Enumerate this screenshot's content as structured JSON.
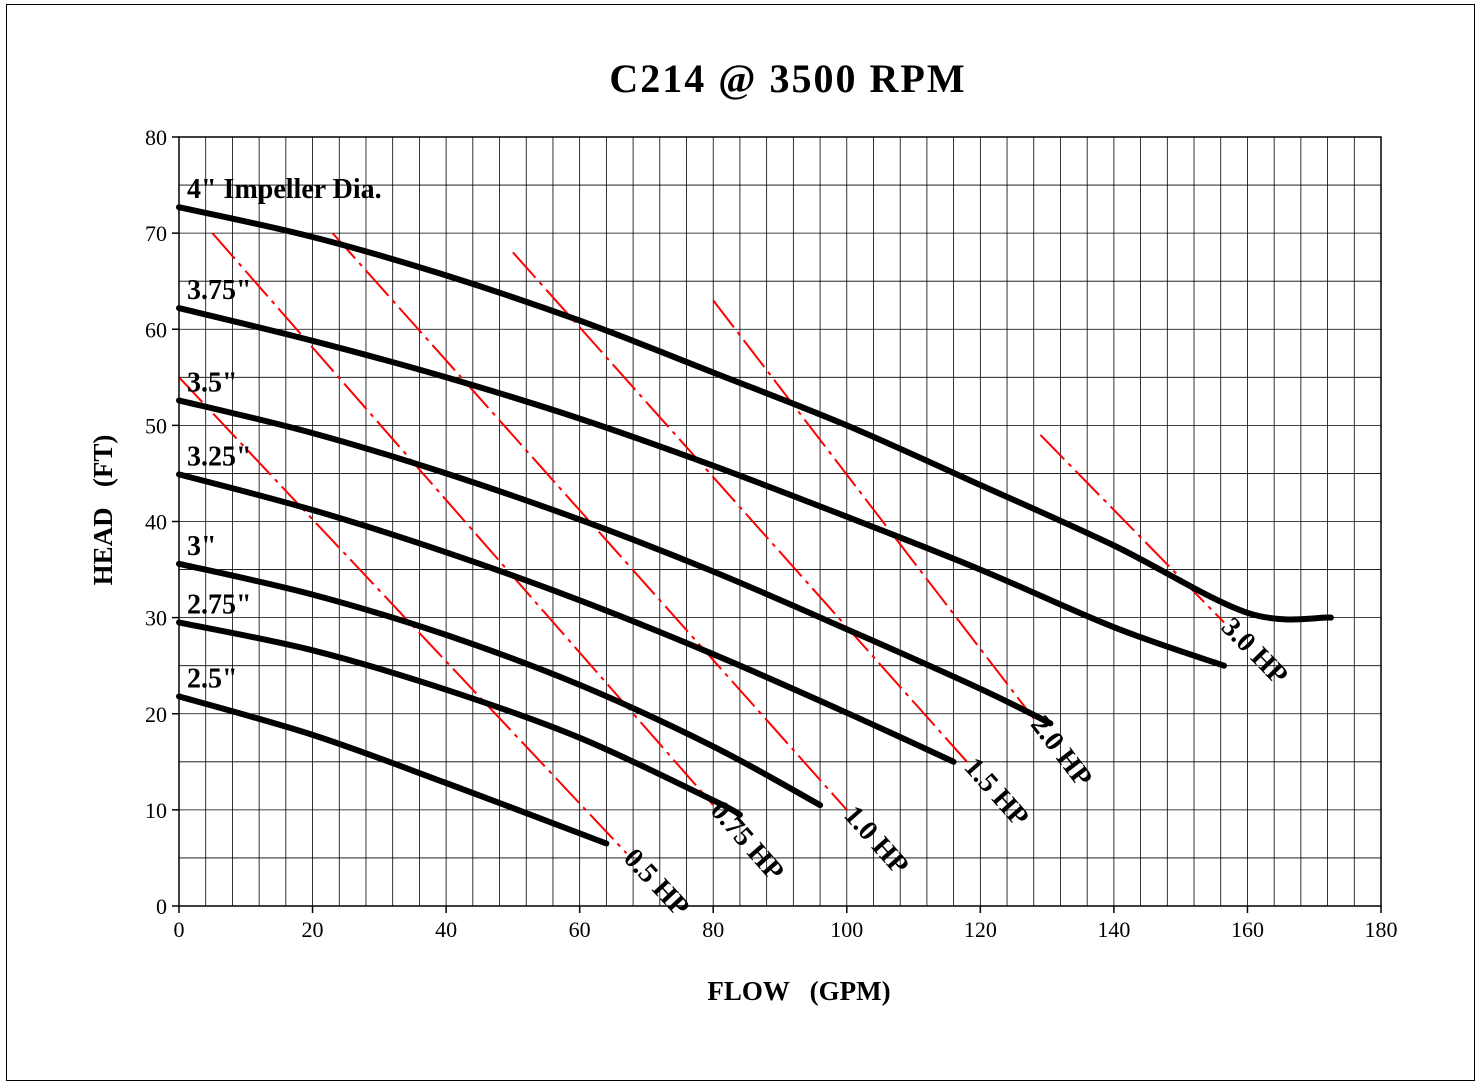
{
  "chart_data": {
    "type": "line",
    "title": "C214 @ 3500 RPM",
    "xlabel": "FLOW   (GPM)",
    "ylabel": "HEAD   (FT)",
    "xlim": [
      0,
      180
    ],
    "ylim": [
      0,
      80
    ],
    "x_ticks": [
      0,
      20,
      40,
      60,
      80,
      100,
      120,
      140,
      160,
      180
    ],
    "y_ticks": [
      0,
      10,
      20,
      30,
      40,
      50,
      60,
      70,
      80
    ],
    "x_minor_step": 4,
    "y_minor_step": 5,
    "grid": true,
    "series": [
      {
        "name": "4\" Impeller Dia.",
        "points": [
          [
            0,
            72.7
          ],
          [
            20,
            69.6
          ],
          [
            40,
            65.6
          ],
          [
            60,
            60.9
          ],
          [
            80,
            55.5
          ],
          [
            100,
            50.0
          ],
          [
            120,
            43.8
          ],
          [
            140,
            37.5
          ],
          [
            160,
            30.5
          ],
          [
            172.5,
            30.0
          ]
        ]
      },
      {
        "name": "3.75\"",
        "points": [
          [
            0,
            62.2
          ],
          [
            20,
            58.8
          ],
          [
            40,
            55.0
          ],
          [
            60,
            50.7
          ],
          [
            80,
            45.8
          ],
          [
            100,
            40.5
          ],
          [
            120,
            35.0
          ],
          [
            140,
            29.0
          ],
          [
            156.5,
            25.0
          ]
        ]
      },
      {
        "name": "3.5\"",
        "points": [
          [
            0,
            52.6
          ],
          [
            20,
            49.2
          ],
          [
            40,
            45.0
          ],
          [
            60,
            40.2
          ],
          [
            80,
            34.8
          ],
          [
            100,
            28.8
          ],
          [
            120,
            22.6
          ],
          [
            130.5,
            19.0
          ]
        ]
      },
      {
        "name": "3.25\"",
        "points": [
          [
            0,
            44.9
          ],
          [
            20,
            41.2
          ],
          [
            40,
            36.8
          ],
          [
            60,
            31.8
          ],
          [
            80,
            26.2
          ],
          [
            100,
            20.1
          ],
          [
            116,
            15.0
          ]
        ]
      },
      {
        "name": "3\"",
        "points": [
          [
            0,
            35.6
          ],
          [
            20,
            32.4
          ],
          [
            40,
            28.2
          ],
          [
            60,
            23.0
          ],
          [
            80,
            16.6
          ],
          [
            96,
            10.5
          ]
        ]
      },
      {
        "name": "2.75\"",
        "points": [
          [
            0,
            29.5
          ],
          [
            20,
            26.6
          ],
          [
            40,
            22.5
          ],
          [
            60,
            17.5
          ],
          [
            80,
            11.0
          ],
          [
            84,
            9.5
          ]
        ]
      },
      {
        "name": "2.5\"",
        "points": [
          [
            0,
            21.8
          ],
          [
            20,
            17.8
          ],
          [
            40,
            12.8
          ],
          [
            64,
            6.5
          ]
        ]
      }
    ],
    "hp_lines": [
      {
        "name": "0.5 HP",
        "from": [
          0,
          55
        ],
        "to": [
          67,
          5.5
        ]
      },
      {
        "name": "0.75 HP",
        "from": [
          5,
          70
        ],
        "to": [
          80,
          10.5
        ]
      },
      {
        "name": "1.0 HP",
        "from": [
          23,
          70
        ],
        "to": [
          100,
          10
        ]
      },
      {
        "name": "1.5 HP",
        "from": [
          50,
          68
        ],
        "to": [
          118,
          15
        ]
      },
      {
        "name": "2.0 HP",
        "from": [
          80,
          63
        ],
        "to": [
          128,
          19.5
        ]
      },
      {
        "name": "3.0 HP",
        "from": [
          129,
          49
        ],
        "to": [
          156.5,
          29.5
        ]
      }
    ],
    "colors": {
      "curve": "#000000",
      "hp_line": "#ff0000",
      "grid": "#000000"
    }
  }
}
